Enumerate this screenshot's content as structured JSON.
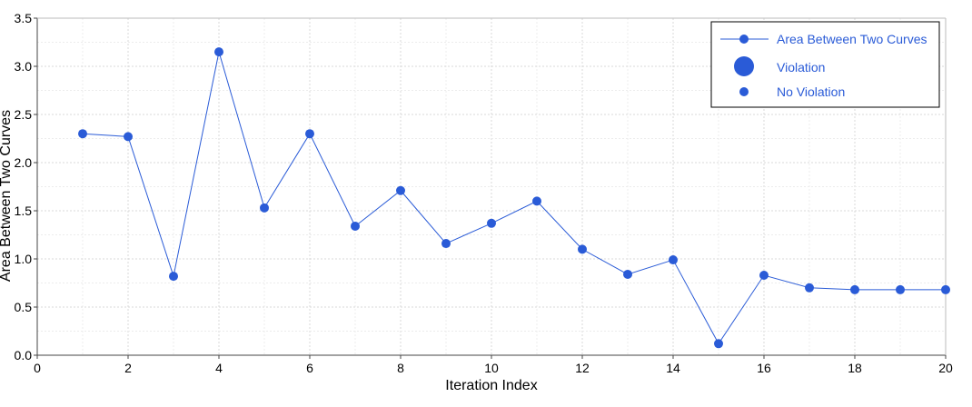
{
  "colors": {
    "series": "#2a5bd7",
    "grid_major": "#d9d9d9",
    "grid_minor": "#ececec",
    "axis": "#444444",
    "legend_border": "#000000"
  },
  "chart_data": {
    "type": "line",
    "xlabel": "Iteration Index",
    "ylabel": "Area Between Two Curves",
    "xlim": [
      0,
      20
    ],
    "ylim": [
      0,
      3.5
    ],
    "x_ticks": [
      0,
      2,
      4,
      6,
      8,
      10,
      12,
      14,
      16,
      18,
      20
    ],
    "y_ticks": [
      0.0,
      0.5,
      1.0,
      1.5,
      2.0,
      2.5,
      3.0,
      3.5
    ],
    "x_tick_labels": [
      "0",
      "2",
      "4",
      "6",
      "8",
      "10",
      "12",
      "14",
      "16",
      "18",
      "20"
    ],
    "y_tick_labels": [
      "0.0",
      "0.5",
      "1.0",
      "1.5",
      "2.0",
      "2.5",
      "3.0",
      "3.5"
    ],
    "grid": true,
    "legend_position": "top-right",
    "legend": [
      {
        "label": "Area Between Two Curves",
        "marker": "line-dot"
      },
      {
        "label": "Violation",
        "marker": "large-dot"
      },
      {
        "label": "No Violation",
        "marker": "small-dot"
      }
    ],
    "series": [
      {
        "name": "Area Between Two Curves",
        "x": [
          1,
          2,
          3,
          4,
          5,
          6,
          7,
          8,
          9,
          10,
          11,
          12,
          13,
          14,
          15,
          16,
          17,
          18,
          19,
          20
        ],
        "y": [
          2.3,
          2.27,
          0.82,
          3.15,
          1.53,
          2.3,
          1.34,
          1.71,
          1.16,
          1.37,
          1.6,
          1.1,
          0.84,
          0.99,
          0.12,
          0.83,
          0.7,
          0.68,
          0.68,
          0.68
        ]
      }
    ]
  }
}
